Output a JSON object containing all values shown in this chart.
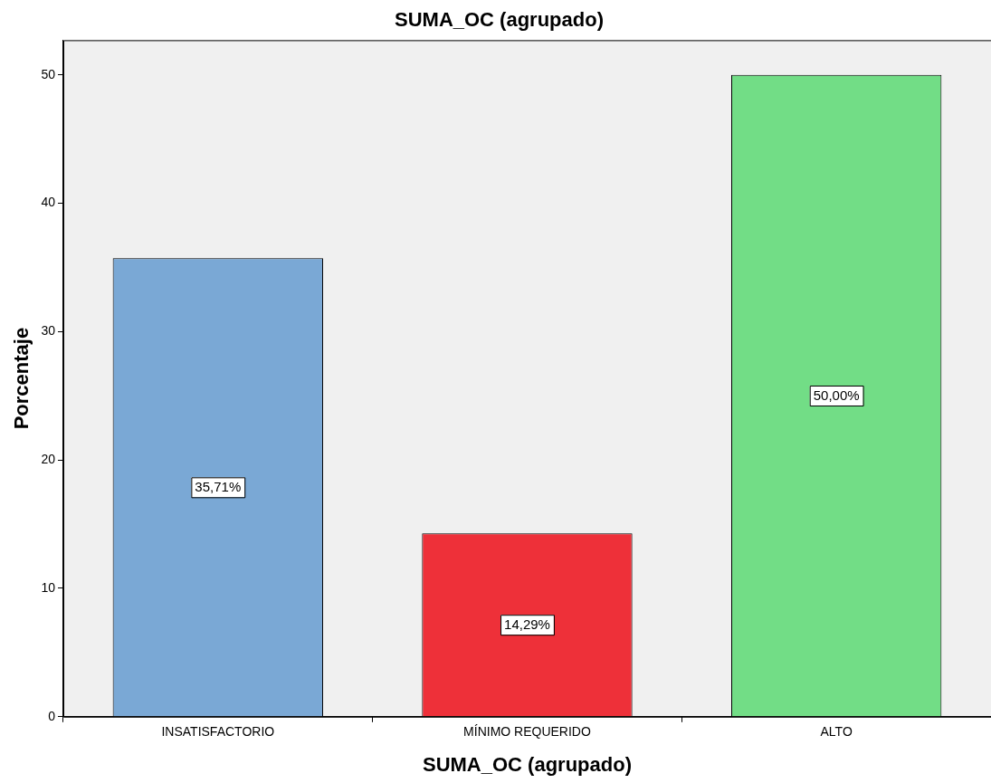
{
  "chart_data": {
    "type": "bar",
    "title": "SUMA_OC (agrupado)",
    "xlabel": "SUMA_OC (agrupado)",
    "ylabel": "Porcentaje",
    "categories": [
      "INSATISFACTORIO",
      "MÍNIMO REQUERIDO",
      "ALTO"
    ],
    "values": [
      35.71,
      14.29,
      50.0
    ],
    "colors": [
      "#7aa8d5",
      "#ee3039",
      "#72dd86"
    ],
    "value_labels": [
      "35,71%",
      "14,29%",
      "50,00%"
    ],
    "ylim": [
      0,
      52.7
    ],
    "yticks": [
      0,
      10,
      20,
      30,
      40,
      50
    ],
    "grid": false,
    "legend": false
  }
}
